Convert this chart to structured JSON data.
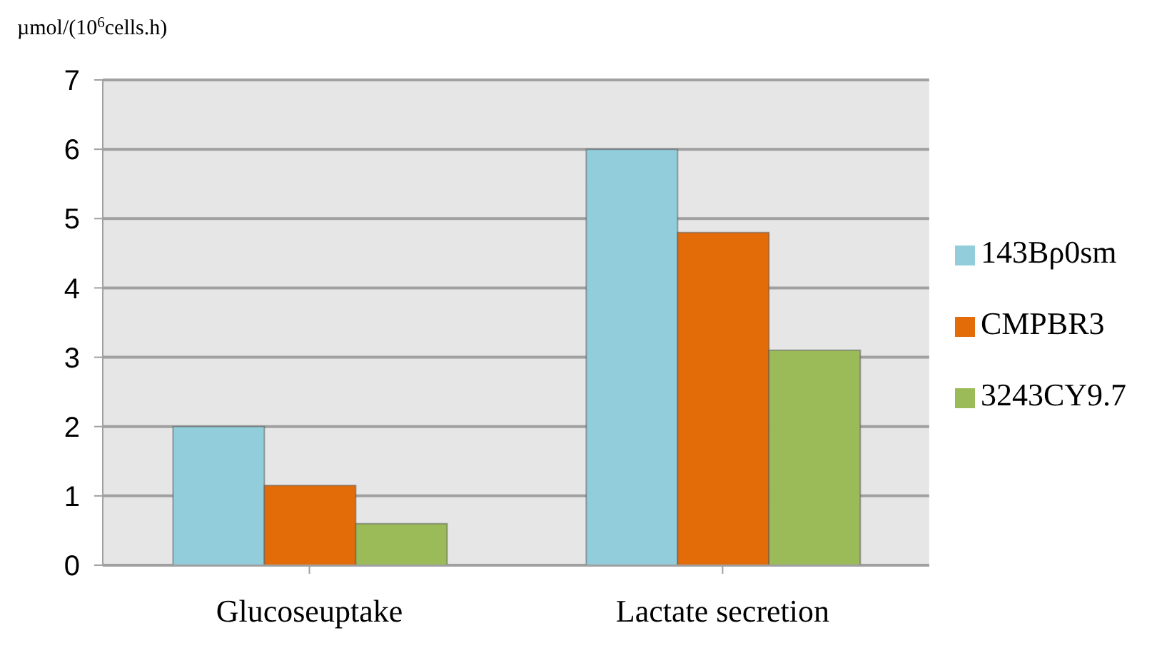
{
  "chart_data": {
    "type": "bar",
    "ylabel": "µmol/(10$^{6}$cells.h)",
    "categories": [
      "Glucoseuptake",
      "Lactate secretion"
    ],
    "series": [
      {
        "name": "143Bρ0sm",
        "color": "#92cddc",
        "values": [
          2.0,
          6.0
        ]
      },
      {
        "name": "CMPBR3",
        "color": "#e36c09",
        "values": [
          1.15,
          4.8
        ]
      },
      {
        "name": "3243CY9.7",
        "color": "#9bbb59",
        "values": [
          0.6,
          3.1
        ]
      }
    ],
    "ylim": [
      0,
      7
    ],
    "yticks": [
      0,
      1,
      2,
      3,
      4,
      5,
      6,
      7
    ],
    "grid": "y",
    "legend": "right"
  }
}
